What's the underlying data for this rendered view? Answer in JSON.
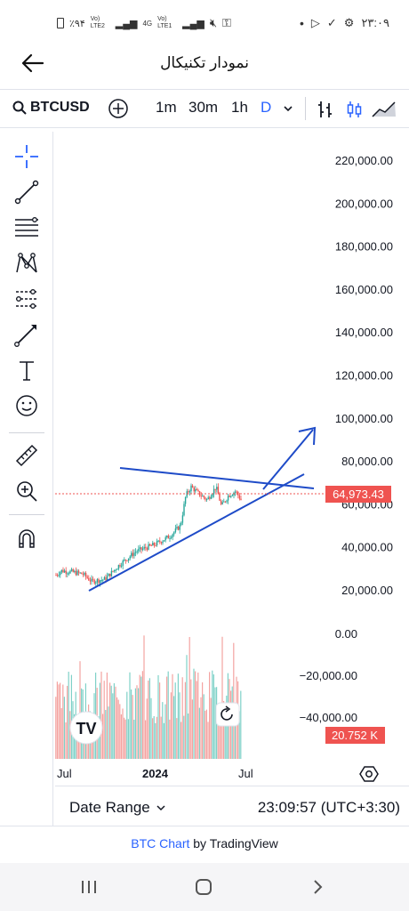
{
  "status_bar": {
    "battery": "٪۹۴",
    "network1": "Vo) LTE2",
    "network2": "4G",
    "network3": "Vo) LTE1",
    "time": "۲۳:۰۹"
  },
  "app_bar": {
    "title": "نمودار تکنیکال"
  },
  "toolbar": {
    "symbol": "BTCUSD",
    "intervals": [
      "1m",
      "30m",
      "1h",
      "D"
    ],
    "active_interval": "D"
  },
  "chart": {
    "price_axis_labels": [
      "220,000.00",
      "200,000.00",
      "180,000.00",
      "160,000.00",
      "140,000.00",
      "120,000.00",
      "100,000.00",
      "80,000.00",
      "60,000.00",
      "40,000.00",
      "20,000.00"
    ],
    "current_price": "64,973.43",
    "volume_axis_labels": [
      "0.00",
      "−20,000.00",
      "−40,000.00"
    ],
    "current_volume": "20.752 K",
    "time_labels": [
      "Jul",
      "2024",
      "Jul"
    ],
    "accent_color": "#2962ff",
    "up_color": "#26a69a",
    "down_color": "#ef5350"
  },
  "bottom_bar": {
    "date_range_label": "Date Range",
    "clock": "23:09:57 (UTC+3:30)"
  },
  "footer": {
    "link_text": "BTC Chart",
    "by_text": "by TradingView"
  }
}
